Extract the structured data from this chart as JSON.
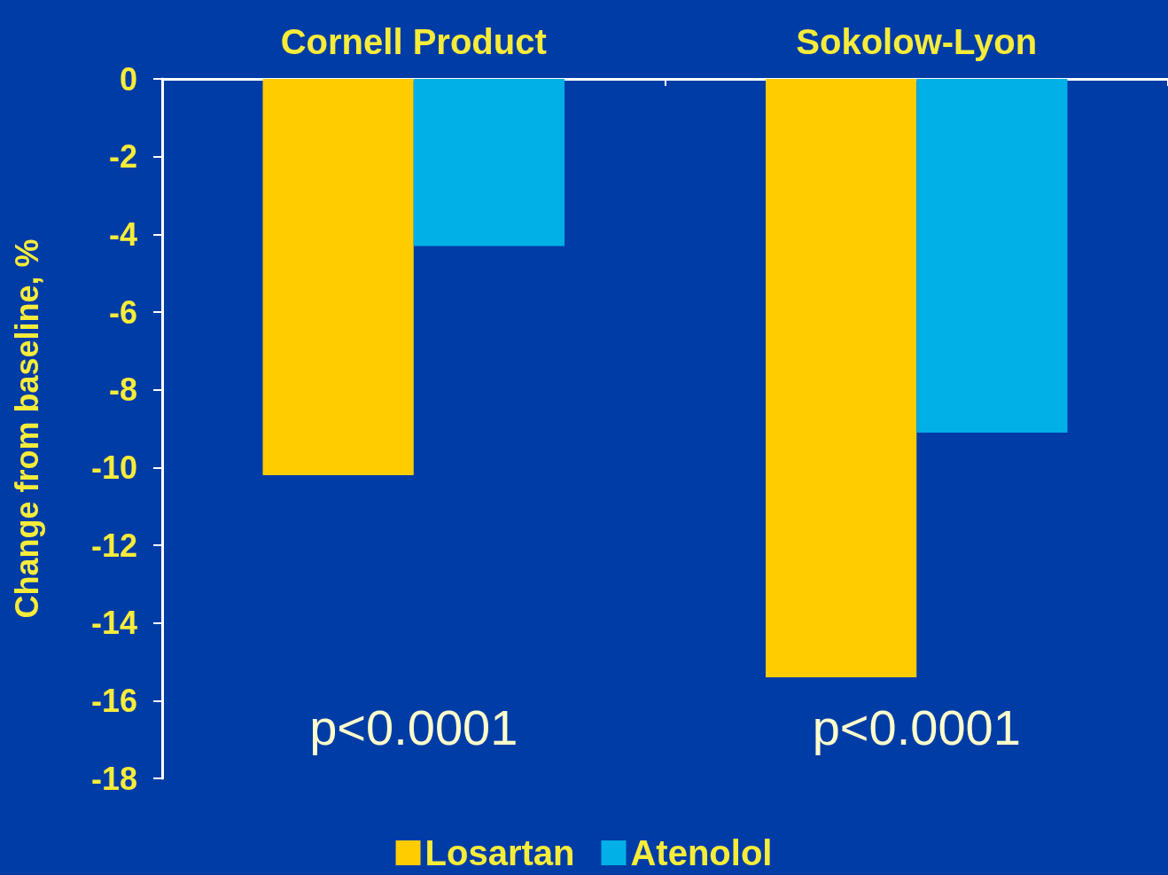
{
  "chart_data": {
    "type": "bar",
    "categories": [
      "Cornell Product",
      "Sokolow-Lyon"
    ],
    "series": [
      {
        "name": "Losartan",
        "color": "#ffcc00",
        "values": [
          -10.2,
          -15.4
        ]
      },
      {
        "name": "Atenolol",
        "color": "#00b0e6",
        "values": [
          -4.3,
          -9.1
        ]
      }
    ],
    "ylabel": "Change from baseline, %",
    "ylim": [
      -18,
      0
    ],
    "yticks": [
      -18,
      -16,
      -14,
      -12,
      -10,
      -8,
      -6,
      -4,
      -2,
      0
    ],
    "annotations": [
      "p<0.0001",
      "p<0.0001"
    ],
    "grid": false,
    "legend": "bottom"
  }
}
